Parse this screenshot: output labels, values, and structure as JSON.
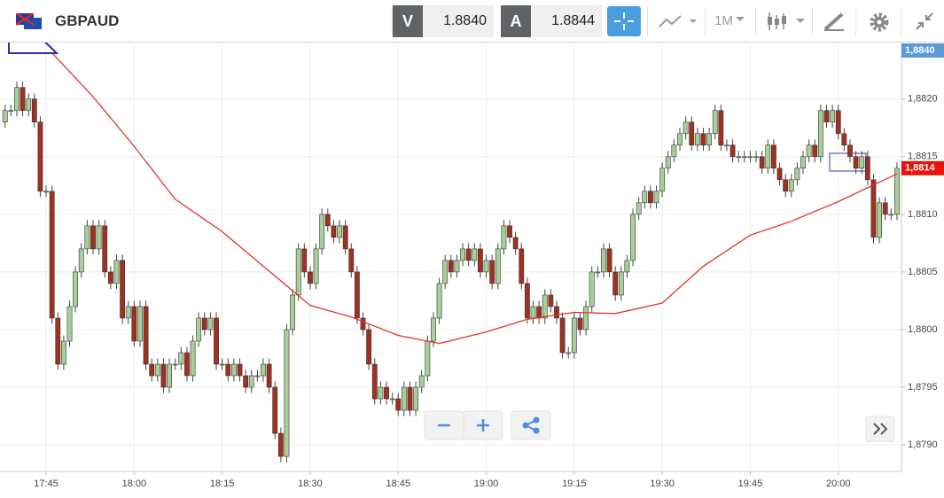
{
  "toolbar": {
    "symbol": "GBPAUD",
    "bid_label": "V",
    "bid": "1.8840",
    "ask_label": "A",
    "ask": "1.8844",
    "interval": "1M"
  },
  "chart_data": {
    "type": "candlestick",
    "x": [
      "17:38",
      "17:39",
      "17:40",
      "17:41",
      "17:42",
      "17:43",
      "17:44",
      "17:45",
      "17:46",
      "17:47",
      "17:48",
      "17:49",
      "17:50",
      "17:51",
      "17:52",
      "17:53",
      "17:54",
      "17:55",
      "17:56",
      "17:57",
      "17:58",
      "17:59",
      "18:00",
      "18:01",
      "18:02",
      "18:03",
      "18:04",
      "18:05",
      "18:06",
      "18:07",
      "18:08",
      "18:09",
      "18:10",
      "18:11",
      "18:12",
      "18:13",
      "18:14",
      "18:15",
      "18:16",
      "18:17",
      "18:18",
      "18:19",
      "18:20",
      "18:21",
      "18:22",
      "18:23",
      "18:24",
      "18:25",
      "18:26",
      "18:27",
      "18:28",
      "18:29",
      "18:30",
      "18:31",
      "18:32",
      "18:33",
      "18:34",
      "18:35",
      "18:36",
      "18:37",
      "18:38",
      "18:39",
      "18:40",
      "18:41",
      "18:42",
      "18:43",
      "18:44",
      "18:45",
      "18:46",
      "18:47",
      "18:48",
      "18:49",
      "18:50",
      "18:51",
      "18:52",
      "18:53",
      "18:54",
      "18:55",
      "18:56",
      "18:57",
      "18:58",
      "18:59",
      "19:00",
      "19:01",
      "19:02",
      "19:03",
      "19:04",
      "19:05",
      "19:06",
      "19:07",
      "19:08",
      "19:09",
      "19:10",
      "19:11",
      "19:12",
      "19:13",
      "19:14",
      "19:15",
      "19:16",
      "19:17",
      "19:18",
      "19:19",
      "19:20",
      "19:21",
      "19:22",
      "19:23",
      "19:24",
      "19:25",
      "19:26",
      "19:27",
      "19:28",
      "19:29",
      "19:30",
      "19:31",
      "19:32",
      "19:33",
      "19:34",
      "19:35",
      "19:36",
      "19:37",
      "19:38",
      "19:39",
      "19:40",
      "19:41",
      "19:42",
      "19:43",
      "19:44",
      "19:45",
      "19:46",
      "19:47",
      "19:48",
      "19:49",
      "19:50",
      "19:51",
      "19:52",
      "19:53",
      "19:54",
      "19:55",
      "19:56",
      "19:57",
      "19:58",
      "19:59",
      "20:00",
      "20:01",
      "20:02",
      "20:03",
      "20:04",
      "20:05",
      "20:06",
      "20:07",
      "20:08",
      "20:09",
      "20:10"
    ],
    "open": [
      1.8818,
      1.8819,
      1.8819,
      1.8821,
      1.8819,
      1.882,
      1.8818,
      1.8812,
      1.8812,
      1.8801,
      1.8797,
      1.8799,
      1.8802,
      1.8805,
      1.8807,
      1.8809,
      1.8807,
      1.8809,
      1.8805,
      1.8804,
      1.8806,
      1.8801,
      1.8802,
      1.8799,
      1.8802,
      1.8797,
      1.8796,
      1.8797,
      1.8795,
      1.8797,
      1.8797,
      1.8798,
      1.8796,
      1.8799,
      1.8801,
      1.88,
      1.8801,
      1.8797,
      1.8797,
      1.8796,
      1.8797,
      1.8796,
      1.8795,
      1.8796,
      1.8796,
      1.8797,
      1.8795,
      1.8791,
      1.8789,
      1.88,
      1.8803,
      1.8807,
      1.8805,
      1.8804,
      1.8807,
      1.881,
      1.8809,
      1.8808,
      1.8809,
      1.8807,
      1.8805,
      1.8801,
      1.88,
      1.8797,
      1.8794,
      1.8795,
      1.8794,
      1.8794,
      1.8793,
      1.8795,
      1.8793,
      1.8795,
      1.8796,
      1.8799,
      1.8801,
      1.8804,
      1.8806,
      1.8805,
      1.8806,
      1.8807,
      1.8806,
      1.8807,
      1.8805,
      1.8806,
      1.8804,
      1.8807,
      1.8809,
      1.8808,
      1.8807,
      1.8804,
      1.8801,
      1.8802,
      1.8801,
      1.8803,
      1.8802,
      1.8801,
      1.8798,
      1.8798,
      1.8801,
      1.88,
      1.8802,
      1.8805,
      1.8805,
      1.8807,
      1.8805,
      1.8803,
      1.8805,
      1.8806,
      1.881,
      1.8811,
      1.8812,
      1.8811,
      1.8812,
      1.8814,
      1.8815,
      1.8816,
      1.8817,
      1.8818,
      1.8816,
      1.8817,
      1.8816,
      1.8817,
      1.8819,
      1.8816,
      1.8816,
      1.8815,
      1.8815,
      1.8815,
      1.8815,
      1.8815,
      1.8814,
      1.8816,
      1.8814,
      1.8813,
      1.8812,
      1.8813,
      1.8814,
      1.8815,
      1.8816,
      1.8815,
      1.8819,
      1.8818,
      1.8819,
      1.8817,
      1.8816,
      1.8815,
      1.8814,
      1.8815,
      1.8813,
      1.8808,
      1.8811,
      1.881,
      1.881
    ],
    "high": [
      1.88195,
      1.88195,
      1.88215,
      1.88215,
      1.88205,
      1.88205,
      1.88185,
      1.88125,
      1.88125,
      1.88015,
      1.87995,
      1.88025,
      1.88055,
      1.88075,
      1.88095,
      1.88095,
      1.88095,
      1.88095,
      1.88055,
      1.88065,
      1.88065,
      1.88025,
      1.88025,
      1.88025,
      1.88025,
      1.87975,
      1.87975,
      1.87975,
      1.87975,
      1.87975,
      1.87985,
      1.87985,
      1.87995,
      1.88015,
      1.88015,
      1.88015,
      1.88015,
      1.87975,
      1.87975,
      1.87975,
      1.87975,
      1.87965,
      1.87965,
      1.87965,
      1.87975,
      1.87975,
      1.87955,
      1.87915,
      1.88005,
      1.88035,
      1.88075,
      1.88075,
      1.88055,
      1.88075,
      1.88105,
      1.88105,
      1.88095,
      1.88095,
      1.88095,
      1.88075,
      1.88055,
      1.88015,
      1.88005,
      1.87975,
      1.87955,
      1.87955,
      1.87945,
      1.87945,
      1.87955,
      1.87955,
      1.87955,
      1.87965,
      1.87995,
      1.88015,
      1.88045,
      1.88065,
      1.88065,
      1.88065,
      1.88075,
      1.88075,
      1.88075,
      1.88075,
      1.88065,
      1.88065,
      1.88075,
      1.88095,
      1.88095,
      1.88085,
      1.88075,
      1.88045,
      1.88025,
      1.88025,
      1.88035,
      1.88035,
      1.88025,
      1.88015,
      1.87985,
      1.88015,
      1.88015,
      1.88025,
      1.88055,
      1.88055,
      1.88075,
      1.88075,
      1.88055,
      1.88055,
      1.88065,
      1.88105,
      1.88115,
      1.88125,
      1.88125,
      1.88125,
      1.88145,
      1.88155,
      1.88165,
      1.88175,
      1.88185,
      1.88185,
      1.88175,
      1.88175,
      1.88175,
      1.88195,
      1.88195,
      1.88165,
      1.88165,
      1.88155,
      1.88155,
      1.88155,
      1.88155,
      1.88155,
      1.88165,
      1.88165,
      1.88145,
      1.88135,
      1.88135,
      1.88145,
      1.88155,
      1.88165,
      1.88165,
      1.88195,
      1.88195,
      1.88195,
      1.88195,
      1.88175,
      1.88165,
      1.88155,
      1.88155,
      1.88155,
      1.88135,
      1.88115,
      1.88115,
      1.88105,
      1.88145
    ],
    "low": [
      1.88175,
      1.88185,
      1.88185,
      1.88185,
      1.88185,
      1.88175,
      1.88115,
      1.88115,
      1.88005,
      1.87965,
      1.87965,
      1.87985,
      1.88015,
      1.88045,
      1.88065,
      1.88065,
      1.88065,
      1.88045,
      1.88035,
      1.88035,
      1.88005,
      1.88005,
      1.87985,
      1.87985,
      1.87965,
      1.87955,
      1.87955,
      1.87945,
      1.87945,
      1.87965,
      1.87965,
      1.87955,
      1.87955,
      1.87985,
      1.87995,
      1.87995,
      1.87965,
      1.87965,
      1.87955,
      1.87955,
      1.87955,
      1.87945,
      1.87945,
      1.87955,
      1.87955,
      1.87945,
      1.87905,
      1.87885,
      1.87885,
      1.87995,
      1.88025,
      1.88045,
      1.88035,
      1.88035,
      1.88065,
      1.88085,
      1.88075,
      1.88075,
      1.88065,
      1.88045,
      1.88005,
      1.87995,
      1.87965,
      1.87935,
      1.87935,
      1.87935,
      1.87935,
      1.87925,
      1.87925,
      1.87925,
      1.87925,
      1.87945,
      1.87955,
      1.87985,
      1.88005,
      1.88035,
      1.88045,
      1.88045,
      1.88055,
      1.88055,
      1.88055,
      1.88045,
      1.88045,
      1.88035,
      1.88035,
      1.88065,
      1.88075,
      1.88065,
      1.88035,
      1.88005,
      1.88005,
      1.88005,
      1.88005,
      1.88015,
      1.88005,
      1.87975,
      1.87975,
      1.87975,
      1.87995,
      1.87995,
      1.88015,
      1.88045,
      1.88045,
      1.88045,
      1.88025,
      1.88025,
      1.88045,
      1.88055,
      1.88095,
      1.88105,
      1.88105,
      1.88105,
      1.88115,
      1.88135,
      1.88145,
      1.88155,
      1.88165,
      1.88155,
      1.88155,
      1.88155,
      1.88155,
      1.88165,
      1.88155,
      1.88155,
      1.88145,
      1.88145,
      1.88145,
      1.88145,
      1.88145,
      1.88135,
      1.88135,
      1.88135,
      1.88125,
      1.88115,
      1.88115,
      1.88125,
      1.88135,
      1.88145,
      1.88145,
      1.88145,
      1.88175,
      1.88175,
      1.88165,
      1.88155,
      1.88145,
      1.88135,
      1.88135,
      1.88125,
      1.88075,
      1.88075,
      1.88095,
      1.88095,
      1.88095
    ],
    "close": [
      1.8819,
      1.8819,
      1.8821,
      1.8819,
      1.882,
      1.8818,
      1.8812,
      1.8812,
      1.8801,
      1.8797,
      1.8799,
      1.8802,
      1.8805,
      1.8807,
      1.8809,
      1.8807,
      1.8809,
      1.8805,
      1.8804,
      1.8806,
      1.8801,
      1.8802,
      1.8799,
      1.8802,
      1.8797,
      1.8796,
      1.8797,
      1.8795,
      1.8797,
      1.8797,
      1.8798,
      1.8796,
      1.8799,
      1.8801,
      1.88,
      1.8801,
      1.8797,
      1.8797,
      1.8796,
      1.8797,
      1.8796,
      1.8795,
      1.8796,
      1.8796,
      1.8797,
      1.8795,
      1.8791,
      1.8789,
      1.88,
      1.8803,
      1.8807,
      1.8805,
      1.8804,
      1.8807,
      1.881,
      1.8809,
      1.8808,
      1.8809,
      1.8807,
      1.8805,
      1.8801,
      1.88,
      1.8797,
      1.8794,
      1.8795,
      1.8794,
      1.8794,
      1.8793,
      1.8795,
      1.8793,
      1.8795,
      1.8796,
      1.8799,
      1.8801,
      1.8804,
      1.8806,
      1.8805,
      1.8806,
      1.8807,
      1.8806,
      1.8807,
      1.8805,
      1.8806,
      1.8804,
      1.8807,
      1.8809,
      1.8808,
      1.8807,
      1.8804,
      1.8801,
      1.8802,
      1.8801,
      1.8803,
      1.8802,
      1.8801,
      1.8798,
      1.8798,
      1.8801,
      1.88,
      1.8802,
      1.8805,
      1.8805,
      1.8807,
      1.8805,
      1.8803,
      1.8805,
      1.8806,
      1.881,
      1.8811,
      1.8812,
      1.8811,
      1.8812,
      1.8814,
      1.8815,
      1.8816,
      1.8817,
      1.8818,
      1.8816,
      1.8817,
      1.8816,
      1.8817,
      1.8819,
      1.8816,
      1.8816,
      1.8815,
      1.8815,
      1.8815,
      1.8815,
      1.8815,
      1.8814,
      1.8816,
      1.8814,
      1.8813,
      1.8812,
      1.8813,
      1.8814,
      1.8815,
      1.8816,
      1.8815,
      1.8819,
      1.8818,
      1.8819,
      1.8817,
      1.8816,
      1.8815,
      1.8814,
      1.8815,
      1.8813,
      1.8808,
      1.8811,
      1.881,
      1.881,
      1.8814
    ],
    "up_color": "#a9cf98",
    "down_color": "#a0301f",
    "line": {
      "x": [
        "17:46",
        "17:53",
        "18:00",
        "18:07",
        "18:15",
        "18:22",
        "18:30",
        "18:37",
        "18:45",
        "18:52",
        "19:00",
        "19:07",
        "19:15",
        "19:22",
        "19:30",
        "19:37",
        "19:45",
        "19:52",
        "20:00",
        "20:10"
      ],
      "values": [
        1.8824,
        1.88202,
        1.88159,
        1.88113,
        1.88085,
        1.88055,
        1.88021,
        1.88011,
        1.87995,
        1.87988,
        1.87998,
        1.88009,
        1.88015,
        1.88014,
        1.88023,
        1.88055,
        1.88082,
        1.88094,
        1.88111,
        1.88135
      ],
      "color": "#e0342b"
    },
    "xticks": [
      "17:45",
      "18:00",
      "18:15",
      "18:30",
      "18:45",
      "19:00",
      "19:15",
      "19:30",
      "19:45",
      "20:00"
    ],
    "ylim": [
      1.87877,
      1.88249
    ],
    "yticks": [
      {
        "value": 1.879,
        "label": "1,8790"
      },
      {
        "value": 1.8795,
        "label": "1,8795"
      },
      {
        "value": 1.88,
        "label": "1,8800"
      },
      {
        "value": 1.8805,
        "label": "1,8805"
      },
      {
        "value": 1.881,
        "label": "1,8810"
      },
      {
        "value": 1.8815,
        "label": "1,8815"
      },
      {
        "value": 1.882,
        "label": "1,8820"
      }
    ],
    "grid": true,
    "price_markers": [
      {
        "value": 1.884,
        "label": "1,8840",
        "color": "#5b9bd5"
      },
      {
        "value": 1.8814,
        "label": "1,8814",
        "color": "#e8140c"
      }
    ]
  }
}
